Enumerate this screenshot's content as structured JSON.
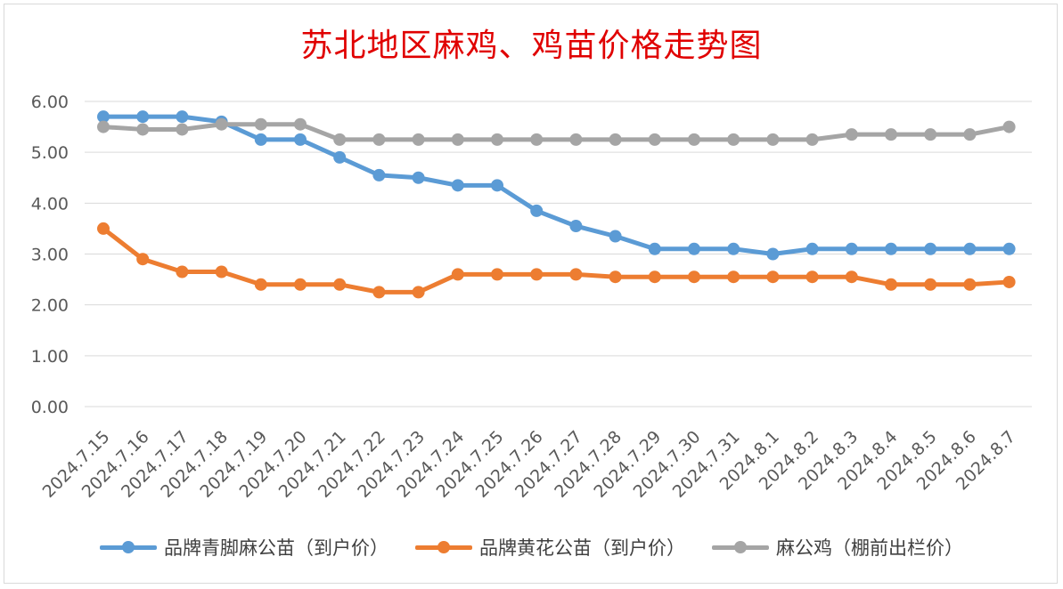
{
  "chart_data": {
    "type": "line",
    "title": "苏北地区麻鸡、鸡苗价格走势图",
    "categories": [
      "2024.7.15",
      "2024.7.16",
      "2024.7.17",
      "2024.7.18",
      "2024.7.19",
      "2024.7.20",
      "2024.7.21",
      "2024.7.22",
      "2024.7.23",
      "2024.7.24",
      "2024.7.25",
      "2024.7.26",
      "2024.7.27",
      "2024.7.28",
      "2024.7.29",
      "2024.7.30",
      "2024.7.31",
      "2024.8.1",
      "2024.8.2",
      "2024.8.3",
      "2024.8.4",
      "2024.8.5",
      "2024.8.6",
      "2024.8.7"
    ],
    "yticks": [
      "0.00",
      "1.00",
      "2.00",
      "3.00",
      "4.00",
      "5.00",
      "6.00"
    ],
    "ylim": [
      0,
      6
    ],
    "grid": true,
    "legend_position": "bottom",
    "series": [
      {
        "name": "品牌青脚麻公苗（到户价）",
        "color": "#5b9bd5",
        "values": [
          5.7,
          5.7,
          5.7,
          5.6,
          5.25,
          5.25,
          4.9,
          4.55,
          4.5,
          4.35,
          4.35,
          3.85,
          3.55,
          3.35,
          3.1,
          3.1,
          3.1,
          3.0,
          3.1,
          3.1,
          3.1,
          3.1,
          3.1,
          3.1
        ]
      },
      {
        "name": "品牌黄花公苗（到户价）",
        "color": "#ed7d31",
        "values": [
          3.5,
          2.9,
          2.65,
          2.65,
          2.4,
          2.4,
          2.4,
          2.25,
          2.25,
          2.6,
          2.6,
          2.6,
          2.6,
          2.55,
          2.55,
          2.55,
          2.55,
          2.55,
          2.55,
          2.55,
          2.4,
          2.4,
          2.4,
          2.45
        ]
      },
      {
        "name": "麻公鸡（棚前出栏价）",
        "color": "#a5a5a5",
        "values": [
          5.5,
          5.45,
          5.45,
          5.55,
          5.55,
          5.55,
          5.25,
          5.25,
          5.25,
          5.25,
          5.25,
          5.25,
          5.25,
          5.25,
          5.25,
          5.25,
          5.25,
          5.25,
          5.25,
          5.35,
          5.35,
          5.35,
          5.35,
          5.5
        ]
      }
    ]
  }
}
